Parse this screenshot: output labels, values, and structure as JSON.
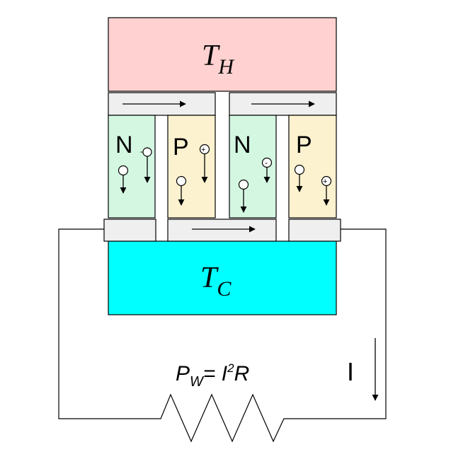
{
  "hot_reservoir": {
    "symbol": "T",
    "subscript": "H"
  },
  "cold_reservoir": {
    "symbol": "T",
    "subscript": "C"
  },
  "legs": [
    {
      "label": "N",
      "type": "n"
    },
    {
      "label": "P",
      "type": "p"
    },
    {
      "label": "N",
      "type": "n"
    },
    {
      "label": "P",
      "type": "p"
    }
  ],
  "carrier_signs": {
    "negative": "-",
    "positive": "+"
  },
  "current": {
    "label": "I"
  },
  "power_formula": {
    "p": "P",
    "p_sub": "W",
    "eq": "= I",
    "sup": "2",
    "r": "R"
  },
  "colors": {
    "hot": "#ffd1d1",
    "cold": "#00ffff",
    "n_type": "#d4f7e2",
    "p_type": "#fdf2cf",
    "conductor": "#efefef",
    "line": "#000000"
  }
}
